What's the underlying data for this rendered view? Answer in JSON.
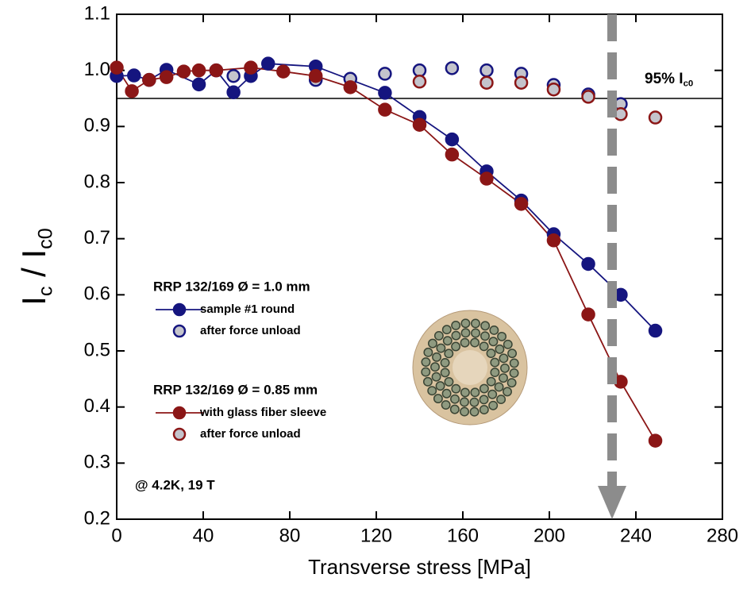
{
  "chart_data": {
    "type": "scatter",
    "xlabel": "Transverse stress [MPa]",
    "ylabel_parts": [
      {
        "text": "I"
      },
      {
        "text": "c",
        "sub": true
      },
      {
        "text": " / "
      },
      {
        "text": "I"
      },
      {
        "text": "c0",
        "sub": true
      }
    ],
    "xlim": [
      0,
      280
    ],
    "xticks": [
      0,
      40,
      80,
      120,
      160,
      200,
      240,
      280
    ],
    "ylim": [
      0.2,
      1.1
    ],
    "yticks": [
      {
        "value": 0.2,
        "label": "0.2"
      },
      {
        "value": 0.3,
        "label": "0.3"
      },
      {
        "value": 0.4,
        "label": "0.4"
      },
      {
        "value": 0.5,
        "label": "0.5"
      },
      {
        "value": 0.6,
        "label": "0.6"
      },
      {
        "value": 0.7,
        "label": "0.7"
      },
      {
        "value": 0.8,
        "label": "0.8"
      },
      {
        "value": 0.9,
        "label": "0.9"
      },
      {
        "value": 1.0,
        "label": "1.0"
      },
      {
        "value": 1.1,
        "label": "1.1"
      }
    ],
    "hline": {
      "value": 0.95,
      "label_parts": [
        {
          "text": "95% I"
        },
        {
          "text": "c0",
          "sub": true
        }
      ]
    },
    "arrow_x": 229,
    "legend_titles": [
      "RRP 132/169 Ø = 1.0 mm",
      "RRP 132/169 Ø = 0.85 mm"
    ],
    "note": "@ 4.2K, 19 T",
    "series": [
      {
        "name": "sample #1 round",
        "color": "#15157f",
        "fill": "#15157f",
        "line": true,
        "x": [
          0,
          8,
          15,
          23,
          38,
          46,
          54,
          62,
          70,
          92,
          124,
          140,
          155,
          171,
          187,
          202,
          218,
          233,
          249
        ],
        "values": [
          0.99,
          0.991,
          0.983,
          1.001,
          0.975,
          1.0,
          0.961,
          0.99,
          1.012,
          1.007,
          0.96,
          0.917,
          0.877,
          0.82,
          0.768,
          0.708,
          0.655,
          0.6,
          0.536
        ]
      },
      {
        "name": "after force unload",
        "color": "#15157f",
        "fill": "#c4c4cc",
        "line": false,
        "x": [
          54,
          92,
          108,
          124,
          140,
          155,
          171,
          187,
          202,
          218,
          233
        ],
        "values": [
          0.99,
          0.983,
          0.985,
          0.994,
          1.0,
          1.004,
          1.0,
          0.994,
          0.974,
          0.957,
          0.94
        ]
      },
      {
        "name": "with glass fiber sleeve",
        "color": "#8b1616",
        "fill": "#8b1616",
        "line": true,
        "x": [
          0,
          7,
          15,
          23,
          31,
          38,
          46,
          62,
          77,
          92,
          108,
          124,
          140,
          155,
          171,
          187,
          202,
          218,
          233,
          249
        ],
        "values": [
          1.005,
          0.963,
          0.983,
          0.988,
          0.998,
          1.0,
          1.0,
          1.005,
          0.998,
          0.99,
          0.97,
          0.93,
          0.903,
          0.85,
          0.807,
          0.762,
          0.697,
          0.565,
          0.445,
          0.34
        ]
      },
      {
        "name": "after force unload",
        "color": "#8b1616",
        "fill": "#c4c4cc",
        "line": false,
        "x": [
          140,
          171,
          187,
          202,
          218,
          233,
          249
        ],
        "values": [
          0.98,
          0.978,
          0.978,
          0.966,
          0.953,
          0.922,
          0.916
        ]
      }
    ]
  }
}
